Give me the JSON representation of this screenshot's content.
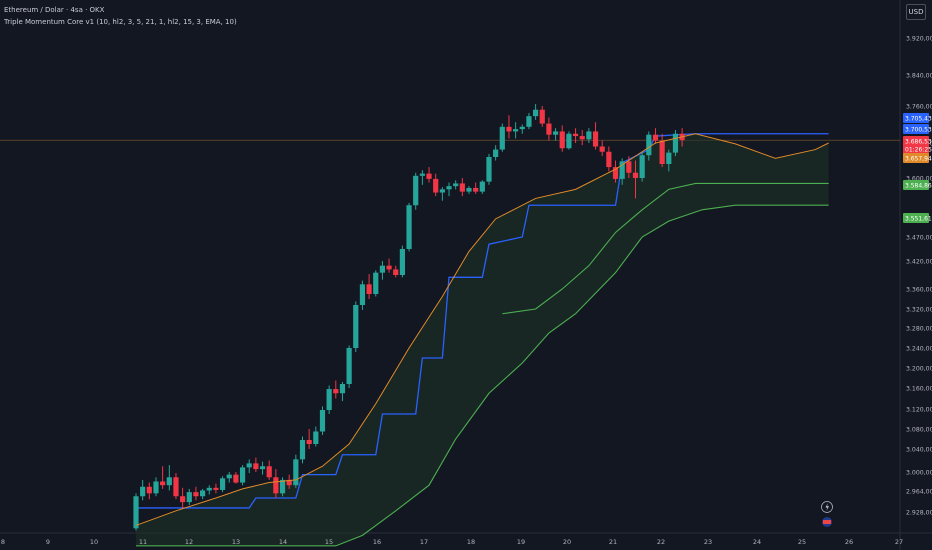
{
  "header": {
    "symbol_line": "Ethereum / Dolar · 4sa · OKX",
    "indicator_line": "Triple Momentum Core v1 (10, hl2, 3, 5, 21, 1, hl2, 15, 3, EMA, 10)"
  },
  "currency_button": "USD",
  "colors": {
    "background": "#131722",
    "candle_up": "#26a69a",
    "candle_down": "#f23645",
    "ema_line": "#e08a29",
    "blue_line": "#2962ff",
    "green_line": "#4caf50",
    "fill": "#1d3326"
  },
  "icons": [
    "lightning-icon",
    "flag-icon"
  ],
  "chart_data": {
    "type": "candlestick",
    "x_ticks": [
      "8",
      "9",
      "10",
      "11",
      "12",
      "13",
      "14",
      "15",
      "16",
      "17",
      "18",
      "19",
      "20",
      "21",
      "22",
      "23",
      "24",
      "25",
      "26",
      "27"
    ],
    "y_ticks": [
      "3.920,00",
      "3.840,00",
      "3.760,00",
      "3.680,00",
      "3.600,00",
      "3.470,00",
      "3.420,00",
      "3.360,00",
      "3.320,00",
      "3.280,00",
      "3.240,00",
      "3.200,00",
      "3.160,00",
      "3.120,00",
      "3.080,00",
      "3.040,00",
      "3.000,00",
      "2.964,00",
      "2.928,00"
    ],
    "y_tick_values": [
      3920,
      3840,
      3760,
      3680,
      3600,
      3470,
      3420,
      3360,
      3320,
      3280,
      3240,
      3200,
      3160,
      3120,
      3080,
      3040,
      3000,
      2964,
      2928
    ],
    "price_labels": [
      {
        "text": "3.705,43",
        "value": 3705,
        "color": "#2962ff"
      },
      {
        "text": "3.700,53",
        "value": 3700,
        "color": "#2962ff"
      },
      {
        "text": "3.686,53",
        "value": 3686,
        "color": "#f23645"
      },
      {
        "text": "01:26:25",
        "value": 3676,
        "color": "#f23645"
      },
      {
        "text": "3.657,94",
        "value": 3658,
        "color": "#e08a29"
      },
      {
        "text": "3.584,86",
        "value": 3585,
        "color": "#4caf50"
      },
      {
        "text": "3.551,61",
        "value": 3552,
        "color": "#4caf50"
      }
    ],
    "candles": [
      [
        2900,
        2960,
        2896,
        2955
      ],
      [
        2955,
        2985,
        2948,
        2972
      ],
      [
        2972,
        2980,
        2950,
        2960
      ],
      [
        2960,
        2990,
        2955,
        2982
      ],
      [
        2982,
        3010,
        2968,
        2975
      ],
      [
        2975,
        3012,
        2965,
        2990
      ],
      [
        2990,
        2998,
        2950,
        2955
      ],
      [
        2955,
        2970,
        2935,
        2945
      ],
      [
        2945,
        2968,
        2940,
        2962
      ],
      [
        2962,
        2972,
        2948,
        2955
      ],
      [
        2955,
        2968,
        2950,
        2965
      ],
      [
        2965,
        2975,
        2958,
        2970
      ],
      [
        2970,
        2978,
        2960,
        2966
      ],
      [
        2966,
        2992,
        2962,
        2988
      ],
      [
        2988,
        3000,
        2980,
        2995
      ],
      [
        2995,
        3000,
        2978,
        2980
      ],
      [
        2980,
        3012,
        2975,
        3008
      ],
      [
        3008,
        3022,
        2998,
        3015
      ],
      [
        3015,
        3025,
        3000,
        3005
      ],
      [
        3005,
        3018,
        2995,
        3010
      ],
      [
        3010,
        3020,
        2985,
        2990
      ],
      [
        2990,
        3005,
        2952,
        2960
      ],
      [
        2960,
        2990,
        2955,
        2985
      ],
      [
        2985,
        2995,
        2968,
        2975
      ],
      [
        2975,
        3030,
        2970,
        3022
      ],
      [
        3022,
        3065,
        3015,
        3058
      ],
      [
        3058,
        3080,
        3040,
        3050
      ],
      [
        3050,
        3085,
        3045,
        3075
      ],
      [
        3075,
        3125,
        3068,
        3118
      ],
      [
        3118,
        3165,
        3110,
        3158
      ],
      [
        3158,
        3175,
        3140,
        3150
      ],
      [
        3150,
        3172,
        3135,
        3168
      ],
      [
        3168,
        3245,
        3160,
        3240
      ],
      [
        3240,
        3335,
        3232,
        3328
      ],
      [
        3328,
        3378,
        3318,
        3370
      ],
      [
        3370,
        3392,
        3340,
        3350
      ],
      [
        3350,
        3400,
        3345,
        3395
      ],
      [
        3395,
        3420,
        3380,
        3410
      ],
      [
        3410,
        3425,
        3395,
        3402
      ],
      [
        3402,
        3410,
        3385,
        3390
      ],
      [
        3390,
        3452,
        3385,
        3445
      ],
      [
        3445,
        3545,
        3440,
        3540
      ],
      [
        3540,
        3612,
        3530,
        3605
      ],
      [
        3605,
        3618,
        3585,
        3610
      ],
      [
        3610,
        3625,
        3590,
        3598
      ],
      [
        3598,
        3610,
        3560,
        3568
      ],
      [
        3568,
        3580,
        3550,
        3575
      ],
      [
        3575,
        3590,
        3560,
        3582
      ],
      [
        3582,
        3595,
        3575,
        3588
      ],
      [
        3588,
        3600,
        3560,
        3570
      ],
      [
        3570,
        3582,
        3565,
        3578
      ],
      [
        3578,
        3590,
        3565,
        3570
      ],
      [
        3570,
        3595,
        3565,
        3592
      ],
      [
        3592,
        3655,
        3585,
        3648
      ],
      [
        3648,
        3675,
        3640,
        3665
      ],
      [
        3665,
        3722,
        3660,
        3715
      ],
      [
        3715,
        3740,
        3690,
        3705
      ],
      [
        3705,
        3725,
        3690,
        3710
      ],
      [
        3710,
        3720,
        3700,
        3715
      ],
      [
        3715,
        3745,
        3710,
        3738
      ],
      [
        3738,
        3765,
        3730,
        3752
      ],
      [
        3752,
        3760,
        3715,
        3722
      ],
      [
        3722,
        3735,
        3685,
        3698
      ],
      [
        3698,
        3712,
        3685,
        3705
      ],
      [
        3705,
        3718,
        3660,
        3668
      ],
      [
        3668,
        3705,
        3665,
        3700
      ],
      [
        3700,
        3712,
        3680,
        3695
      ],
      [
        3695,
        3708,
        3675,
        3688
      ],
      [
        3688,
        3712,
        3680,
        3705
      ],
      [
        3705,
        3725,
        3665,
        3672
      ],
      [
        3672,
        3685,
        3650,
        3660
      ],
      [
        3660,
        3672,
        3615,
        3625
      ],
      [
        3625,
        3640,
        3590,
        3598
      ],
      [
        3598,
        3645,
        3585,
        3638
      ],
      [
        3638,
        3650,
        3600,
        3612
      ],
      [
        3612,
        3640,
        3555,
        3600
      ],
      [
        3600,
        3660,
        3592,
        3652
      ],
      [
        3652,
        3705,
        3640,
        3698
      ],
      [
        3698,
        3712,
        3678,
        3685
      ],
      [
        3685,
        3700,
        3625,
        3632
      ],
      [
        3632,
        3665,
        3615,
        3658
      ],
      [
        3658,
        3708,
        3650,
        3700
      ],
      [
        3700,
        3712,
        3672,
        3686
      ]
    ],
    "ema_line": [
      [
        0,
        2905
      ],
      [
        6,
        2930
      ],
      [
        12,
        2952
      ],
      [
        16,
        2968
      ],
      [
        20,
        2980
      ],
      [
        24,
        2985
      ],
      [
        28,
        3010
      ],
      [
        32,
        3050
      ],
      [
        36,
        3130
      ],
      [
        41,
        3240
      ],
      [
        46,
        3345
      ],
      [
        50,
        3440
      ],
      [
        54,
        3510
      ],
      [
        60,
        3555
      ],
      [
        66,
        3575
      ],
      [
        72,
        3620
      ],
      [
        78,
        3680
      ],
      [
        84,
        3700
      ],
      [
        90,
        3678
      ],
      [
        96,
        3645
      ],
      [
        102,
        3665
      ],
      [
        104,
        3680
      ]
    ],
    "blue_line": [
      [
        0,
        2935
      ],
      [
        17,
        2935
      ],
      [
        18,
        2952
      ],
      [
        24,
        2952
      ],
      [
        25,
        2995
      ],
      [
        30,
        2995
      ],
      [
        31,
        3030
      ],
      [
        36,
        3030
      ],
      [
        37,
        3110
      ],
      [
        42,
        3110
      ],
      [
        43,
        3220
      ],
      [
        46,
        3220
      ],
      [
        47,
        3385
      ],
      [
        52,
        3385
      ],
      [
        53,
        3455
      ],
      [
        58,
        3470
      ],
      [
        59,
        3540
      ],
      [
        72,
        3540
      ],
      [
        73,
        3635
      ],
      [
        77,
        3665
      ],
      [
        78,
        3695
      ],
      [
        84,
        3700
      ],
      [
        104,
        3700
      ]
    ],
    "green_line": [
      [
        0,
        2870
      ],
      [
        30,
        2870
      ],
      [
        34,
        2888
      ],
      [
        39,
        2930
      ],
      [
        44,
        2975
      ],
      [
        48,
        3060
      ],
      [
        53,
        3150
      ],
      [
        58,
        3210
      ],
      [
        62,
        3270
      ],
      [
        66,
        3310
      ],
      [
        72,
        3395
      ],
      [
        76,
        3470
      ],
      [
        80,
        3505
      ],
      [
        85,
        3530
      ],
      [
        90,
        3540
      ],
      [
        104,
        3540
      ]
    ],
    "green_upper_line": [
      [
        55,
        3310
      ],
      [
        60,
        3320
      ],
      [
        64,
        3360
      ],
      [
        68,
        3410
      ],
      [
        72,
        3480
      ],
      [
        76,
        3530
      ],
      [
        80,
        3575
      ],
      [
        84,
        3588
      ],
      [
        104,
        3588
      ]
    ]
  }
}
